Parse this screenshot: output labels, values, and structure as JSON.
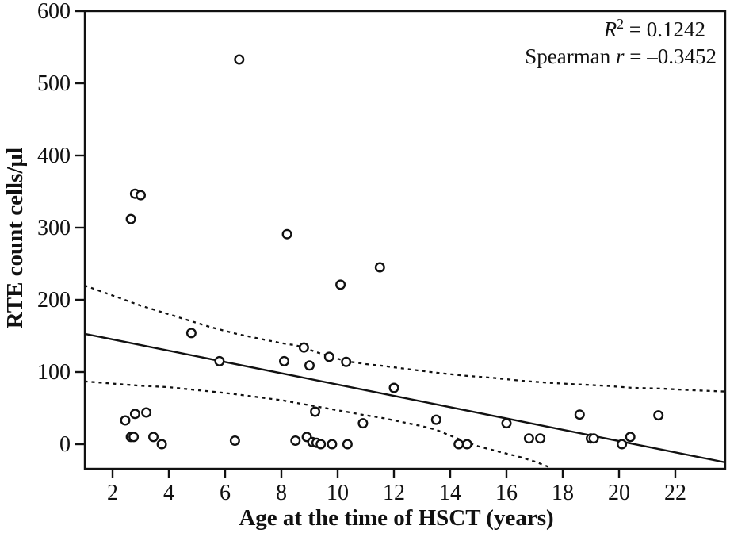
{
  "figure": {
    "background": "#ffffff",
    "ink_color": "#111111"
  },
  "annotation": {
    "line1": {
      "italic": "R",
      "sup": "2",
      "rest": " = 0.1242"
    },
    "line2": {
      "prefix": "Spearman ",
      "italic": "r",
      "rest": " = –0.3452"
    }
  },
  "chart_data": {
    "type": "scatter",
    "title": "",
    "xlabel": "Age at the time of HSCT (years)",
    "ylabel": "RTE count cells/µl",
    "x_ticks": [
      2,
      4,
      6,
      8,
      10,
      12,
      14,
      16,
      18,
      20,
      22
    ],
    "y_ticks": [
      0,
      100,
      200,
      300,
      400,
      500,
      600
    ],
    "x_range": [
      1.0,
      23.8
    ],
    "y_range": [
      -34,
      600
    ],
    "grid": false,
    "legend": "none",
    "r_squared": 0.1242,
    "spearman_r": -0.3452,
    "marker": "open-circle",
    "points": [
      [
        2.45,
        33
      ],
      [
        2.65,
        312
      ],
      [
        2.65,
        10
      ],
      [
        2.75,
        10
      ],
      [
        2.8,
        347
      ],
      [
        2.8,
        42
      ],
      [
        3.0,
        345
      ],
      [
        3.2,
        44
      ],
      [
        3.45,
        10
      ],
      [
        3.75,
        0
      ],
      [
        4.8,
        154
      ],
      [
        5.8,
        115
      ],
      [
        6.35,
        5
      ],
      [
        6.5,
        533
      ],
      [
        8.1,
        115
      ],
      [
        8.2,
        291
      ],
      [
        8.5,
        5
      ],
      [
        8.8,
        134
      ],
      [
        8.9,
        10
      ],
      [
        9.0,
        109
      ],
      [
        9.1,
        3
      ],
      [
        9.2,
        45
      ],
      [
        9.25,
        2
      ],
      [
        9.4,
        0
      ],
      [
        9.7,
        121
      ],
      [
        9.8,
        0
      ],
      [
        10.1,
        221
      ],
      [
        10.3,
        114
      ],
      [
        10.35,
        0
      ],
      [
        10.9,
        29
      ],
      [
        11.5,
        245
      ],
      [
        12.0,
        78
      ],
      [
        13.5,
        34
      ],
      [
        14.3,
        0
      ],
      [
        14.6,
        0
      ],
      [
        16.0,
        29
      ],
      [
        16.8,
        8
      ],
      [
        17.2,
        8
      ],
      [
        18.6,
        41
      ],
      [
        19.0,
        8
      ],
      [
        19.1,
        8
      ],
      [
        20.1,
        0
      ],
      [
        20.4,
        10
      ],
      [
        21.4,
        40
      ]
    ],
    "regression_line": {
      "x": [
        1.0,
        23.75
      ],
      "y": [
        153,
        -25
      ]
    },
    "ci_upper": [
      [
        1,
        220
      ],
      [
        1.5,
        213
      ],
      [
        2,
        206
      ],
      [
        2.5,
        199
      ],
      [
        3,
        192
      ],
      [
        3.5,
        186
      ],
      [
        4,
        180
      ],
      [
        4.5,
        174
      ],
      [
        5,
        168
      ],
      [
        5.5,
        162
      ],
      [
        6,
        157
      ],
      [
        6.5,
        152
      ],
      [
        7,
        148
      ],
      [
        7.5,
        144
      ],
      [
        8,
        140
      ],
      [
        8.5,
        137
      ],
      [
        8.8,
        134
      ],
      [
        9.2,
        128
      ],
      [
        9.7,
        122
      ],
      [
        10.3,
        115
      ],
      [
        11,
        111
      ],
      [
        11.5,
        109
      ],
      [
        12.5,
        104
      ],
      [
        13.5,
        99
      ],
      [
        14.5,
        95
      ],
      [
        15.5,
        92
      ],
      [
        16.5,
        88
      ],
      [
        17.5,
        85
      ],
      [
        18.5,
        83
      ],
      [
        19.5,
        81
      ],
      [
        20.5,
        78
      ],
      [
        21.5,
        77
      ],
      [
        22.5,
        75
      ],
      [
        23.75,
        73
      ]
    ],
    "ci_lower": [
      [
        1,
        87
      ],
      [
        2,
        84
      ],
      [
        3,
        81
      ],
      [
        4,
        79
      ],
      [
        5,
        75
      ],
      [
        6,
        71
      ],
      [
        7,
        66
      ],
      [
        8,
        61
      ],
      [
        9,
        54
      ],
      [
        10,
        47
      ],
      [
        11,
        40
      ],
      [
        11.5,
        37
      ],
      [
        12.5,
        29
      ],
      [
        13,
        25
      ],
      [
        13.5,
        20
      ],
      [
        14,
        12
      ],
      [
        14.5,
        4
      ],
      [
        15,
        -3
      ],
      [
        15.5,
        -8
      ],
      [
        16,
        -13
      ],
      [
        16.5,
        -18
      ],
      [
        17,
        -24
      ],
      [
        17.6,
        -33
      ]
    ]
  }
}
